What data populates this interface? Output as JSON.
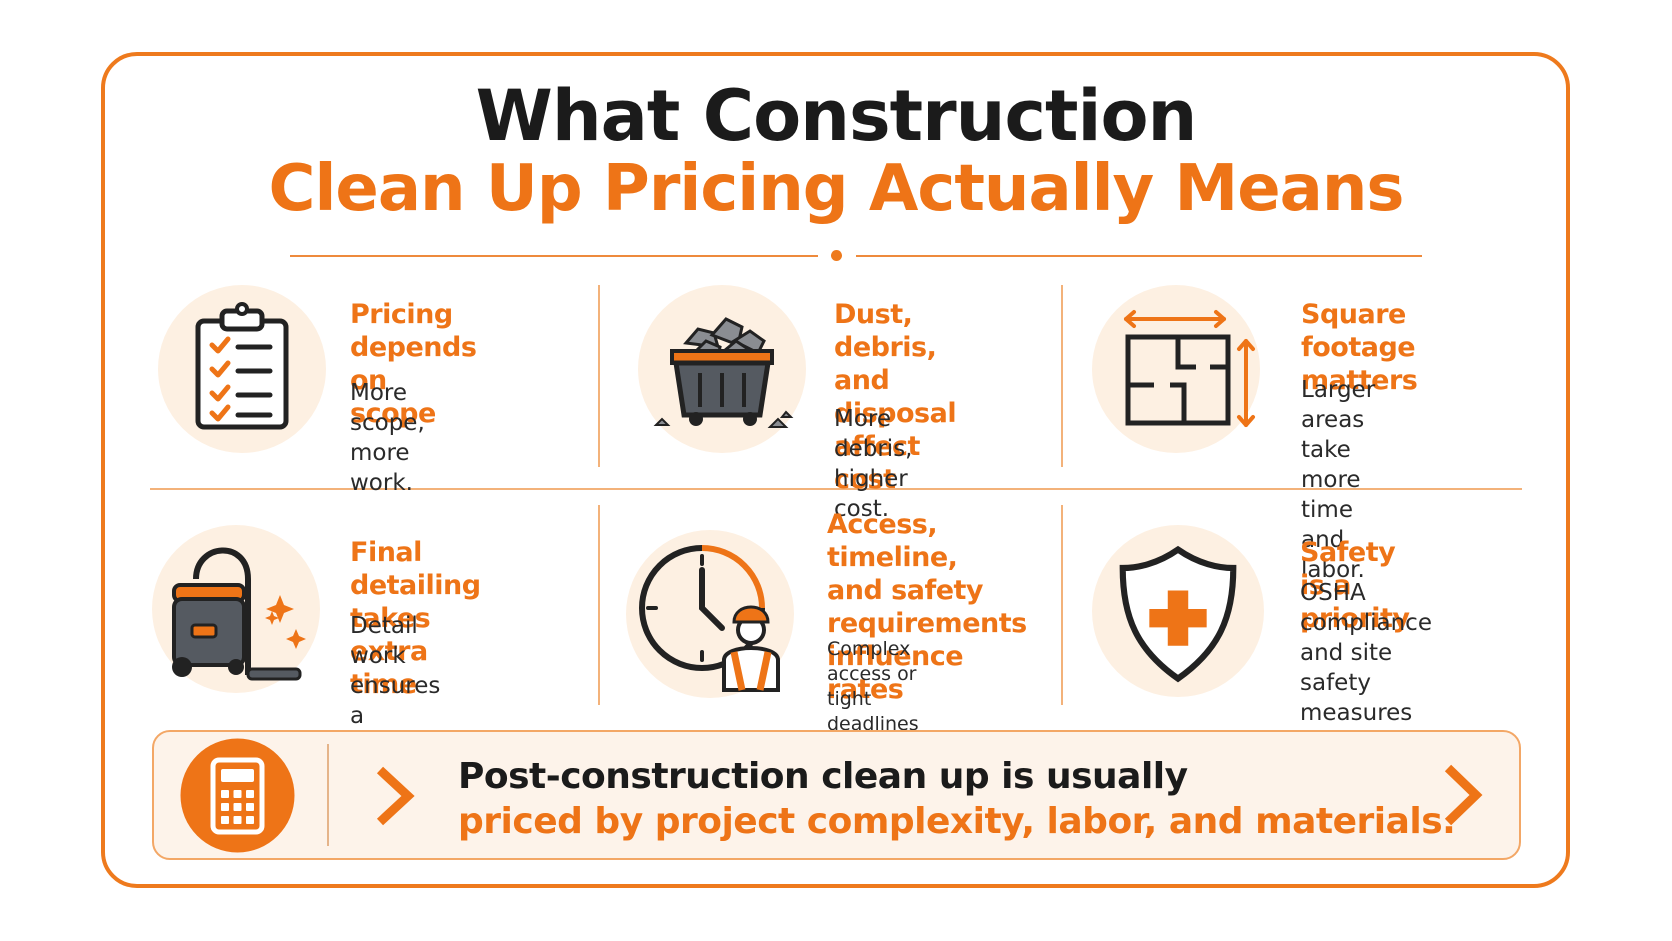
{
  "title": {
    "line1": "What Construction",
    "line2": "Clean Up Pricing Actually Means"
  },
  "colors": {
    "accent": "#ee7417",
    "dark": "#1b1b1b",
    "icon_bg": "#fdf0e2",
    "icon_gray": "#555a61"
  },
  "items": [
    {
      "icon": "clipboard-checklist-icon",
      "title": "Pricing depends\non scope",
      "desc": "More scope,\nmore work."
    },
    {
      "icon": "debris-dumpster-icon",
      "title": "Dust, debris,\nand disposal\naffect cost",
      "desc": "More debris,\nhigher cost."
    },
    {
      "icon": "floor-plan-icon",
      "title": "Square footage\nmatters",
      "desc": "Larger areas\ntake more time\nand labor."
    },
    {
      "icon": "vacuum-cleaner-icon",
      "title": "Final detailing\ntakes extra time",
      "desc": "Detail work ensures\na move-in ready\nfinish."
    },
    {
      "icon": "clock-worker-icon",
      "title": "Access, timeline,\nand safety\nrequirements\ninfluence rates",
      "desc": "Complex access or tight\ndeadlines add time and\nplanning."
    },
    {
      "icon": "safety-shield-icon",
      "title": "Safety is a priority",
      "desc": "OSHA compliance\nand site safety\nmeasures are\nfactored into pricing."
    }
  ],
  "bottom": {
    "icon": "calculator-icon",
    "line1": "Post-construction clean up is usually",
    "line2": "priced by project complexity, labor, and materials."
  }
}
